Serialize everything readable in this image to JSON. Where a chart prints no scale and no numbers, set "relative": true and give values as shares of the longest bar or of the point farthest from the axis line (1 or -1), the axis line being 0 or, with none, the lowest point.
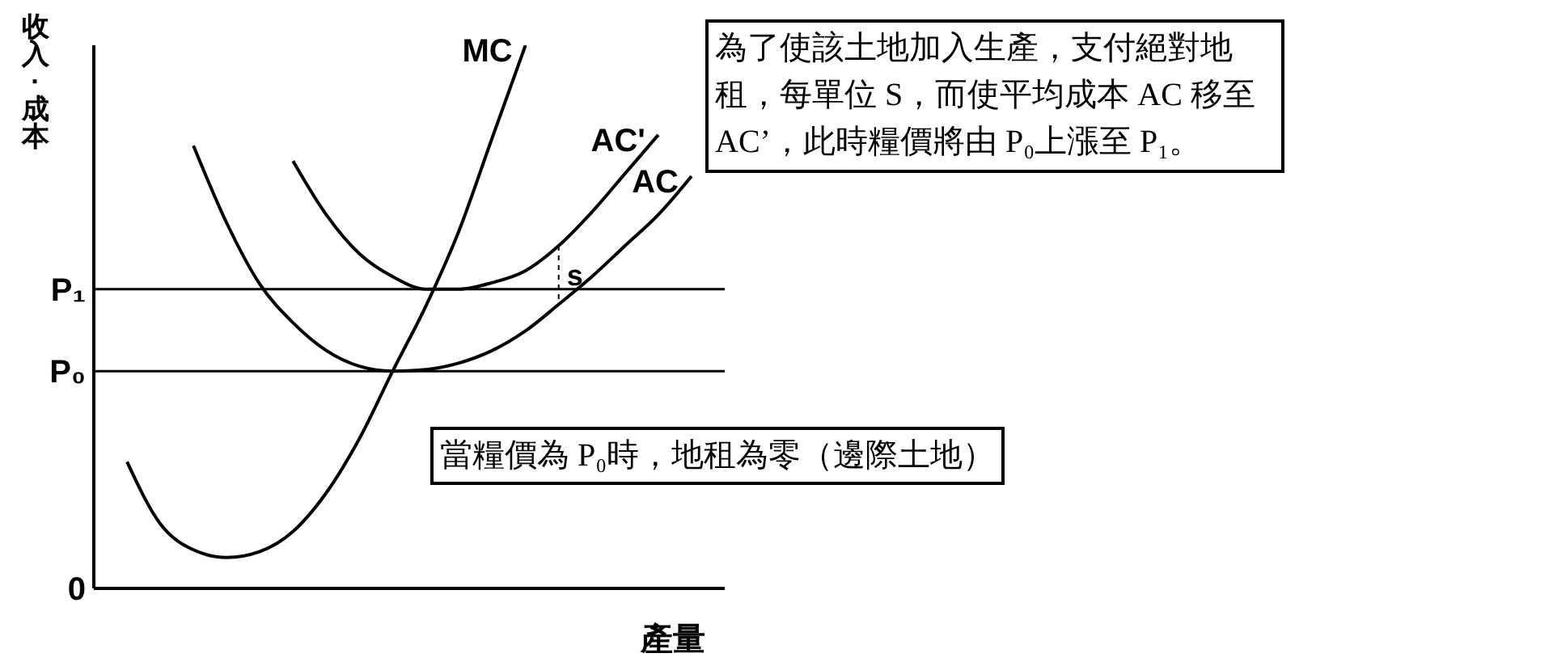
{
  "chart_data": {
    "type": "line",
    "relative": true,
    "ylabel": "收入·成本",
    "xlabel": "產量",
    "marker": "none",
    "line_style": "solid",
    "categories": [
      null,
      null,
      null,
      null,
      null,
      null,
      null,
      null,
      null,
      null,
      null,
      null,
      null,
      null,
      null,
      null,
      null,
      null,
      null,
      null
    ],
    "series": [
      {
        "name": "MC",
        "color": "#000000",
        "values": [
          null,
          0.233,
          0.119,
          0.071,
          0.057,
          0.068,
          0.105,
          0.176,
          0.276,
          0.4,
          0.52,
          0.659,
          0.83,
          1,
          null,
          null,
          null,
          null,
          null,
          null
        ]
      },
      {
        "name": "AC'",
        "color": "#000000",
        "values": [
          null,
          null,
          null,
          null,
          null,
          null,
          0.787,
          0.688,
          0.616,
          0.574,
          0.551,
          0.551,
          0.563,
          0.585,
          0.631,
          0.693,
          0.764,
          0.835,
          null,
          null
        ]
      },
      {
        "name": "AC",
        "color": "#000000",
        "values": [
          null,
          null,
          null,
          0.815,
          0.673,
          0.56,
          0.489,
          0.438,
          0.409,
          0.4,
          0.403,
          0.415,
          0.438,
          0.474,
          0.523,
          0.574,
          0.631,
          0.688,
          0.759,
          null
        ]
      }
    ],
    "ref_lines": [
      {
        "axis": "y",
        "value": 0.551,
        "label": "P₁",
        "color": "#000000"
      },
      {
        "axis": "y",
        "value": 0.4,
        "label": "P₀",
        "color": "#000000"
      }
    ],
    "annotations": [
      "0",
      "s",
      "為了使該土地加入生產，支付絕對地租，每單位 S，而使平均成本 AC 移至 AC’，此時糧價將由 P₀上漲至 P₁。",
      "當糧價為 P₀時，地租為零（邊際土地）"
    ]
  }
}
